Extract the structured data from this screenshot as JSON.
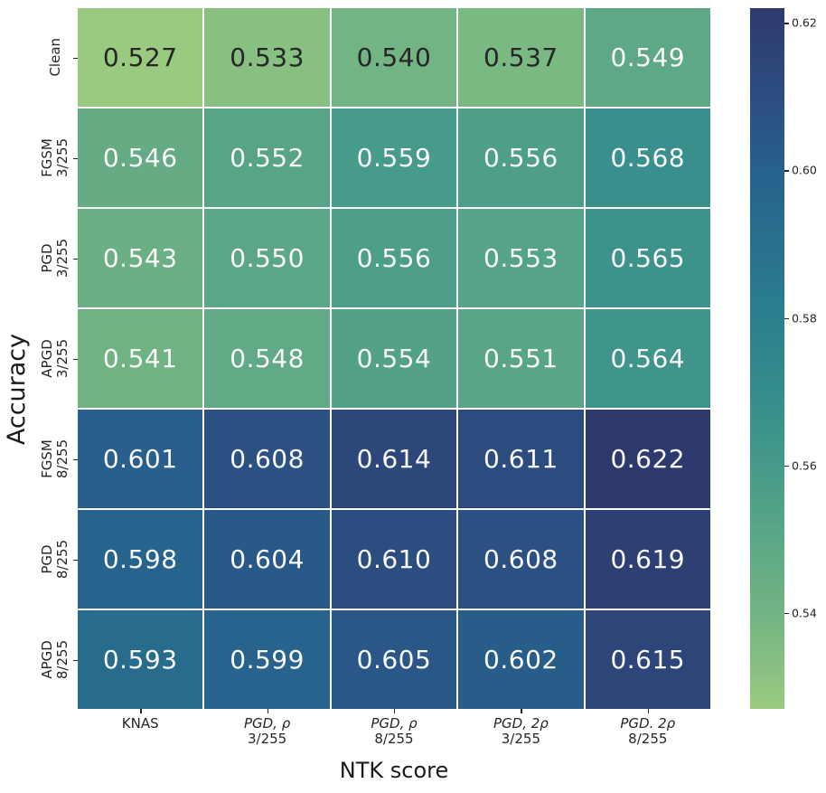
{
  "figure": {
    "xlabel": "NTK score",
    "ylabel": "Accuracy"
  },
  "chart_data": {
    "type": "heatmap",
    "title": "",
    "xlabel": "NTK score",
    "ylabel": "Accuracy",
    "x_categories": [
      {
        "line1": "KNAS",
        "line2": "",
        "italic": false
      },
      {
        "line1": "PGD, ρ",
        "line2": "3/255",
        "italic": true
      },
      {
        "line1": "PGD, ρ",
        "line2": "8/255",
        "italic": true
      },
      {
        "line1": "PGD, 2ρ",
        "line2": "3/255",
        "italic": true
      },
      {
        "line1": "PGD. 2ρ",
        "line2": "8/255",
        "italic": true
      }
    ],
    "y_categories": [
      {
        "line1": "Clean",
        "line2": ""
      },
      {
        "line1": "FGSM",
        "line2": "3/255"
      },
      {
        "line1": "PGD",
        "line2": "3/255"
      },
      {
        "line1": "APGD",
        "line2": "3/255"
      },
      {
        "line1": "FGSM",
        "line2": "8/255"
      },
      {
        "line1": "PGD",
        "line2": "8/255"
      },
      {
        "line1": "APGD",
        "line2": "8/255"
      }
    ],
    "values": [
      [
        0.527,
        0.533,
        0.54,
        0.537,
        0.549
      ],
      [
        0.546,
        0.552,
        0.559,
        0.556,
        0.568
      ],
      [
        0.543,
        0.55,
        0.556,
        0.553,
        0.565
      ],
      [
        0.541,
        0.548,
        0.554,
        0.551,
        0.564
      ],
      [
        0.601,
        0.608,
        0.614,
        0.611,
        0.622
      ],
      [
        0.598,
        0.604,
        0.61,
        0.608,
        0.619
      ],
      [
        0.593,
        0.599,
        0.605,
        0.602,
        0.615
      ]
    ],
    "value_decimals": 3,
    "vmin": 0.527,
    "vmax": 0.622,
    "colormap_anchors": [
      [
        0.527,
        "#9aca80"
      ],
      [
        0.54,
        "#72b483"
      ],
      [
        0.56,
        "#459a8a"
      ],
      [
        0.57,
        "#358c8c"
      ],
      [
        0.58,
        "#2b7f8e"
      ],
      [
        0.6,
        "#27618d"
      ],
      [
        0.61,
        "#2c4d80"
      ],
      [
        0.622,
        "#2e3a6e"
      ]
    ],
    "dark_text_threshold": 0.5405,
    "annotation_colors": {
      "dark": "#262626",
      "light": "#fafafa"
    },
    "colorbar": {
      "tick_labels": [
        "0.62",
        "0.60",
        "0.58",
        "0.56",
        "0.54"
      ],
      "tick_values": [
        0.62,
        0.6,
        0.58,
        0.56,
        0.54
      ],
      "position": "right"
    },
    "grid": true,
    "legend_position": "none"
  }
}
